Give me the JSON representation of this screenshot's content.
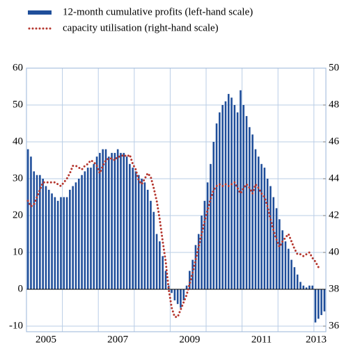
{
  "chart_data": {
    "type": "bar_line",
    "categories": [
      null,
      null,
      null,
      null,
      null,
      null,
      "2005",
      null,
      null,
      null,
      null,
      null,
      null,
      null,
      null,
      null,
      null,
      null,
      null,
      null,
      null,
      null,
      null,
      null,
      null,
      null,
      null,
      null,
      null,
      null,
      "2007",
      null,
      null,
      null,
      null,
      null,
      null,
      null,
      null,
      null,
      null,
      null,
      null,
      null,
      null,
      null,
      null,
      null,
      null,
      null,
      null,
      null,
      null,
      null,
      "2009",
      null,
      null,
      null,
      null,
      null,
      null,
      null,
      null,
      null,
      null,
      null,
      null,
      null,
      null,
      null,
      null,
      null,
      null,
      null,
      null,
      null,
      null,
      null,
      "2011",
      null,
      null,
      null,
      null,
      null,
      null,
      null,
      null,
      null,
      null,
      null,
      null,
      null,
      null,
      null,
      null,
      null,
      null,
      null,
      null,
      "2013"
    ],
    "series": [
      {
        "name": "12-month cumulative profits (left-hand scale)",
        "color": "#1f4e9a",
        "kind": "bar",
        "values": [
          38,
          36,
          32,
          31,
          31,
          30,
          28,
          27,
          26,
          25,
          24,
          25,
          25,
          25,
          27,
          28,
          29,
          30,
          31,
          32,
          33,
          33,
          34,
          36,
          37,
          38,
          38,
          36,
          37,
          37,
          38,
          37,
          37,
          36,
          34,
          33,
          32,
          31,
          30,
          29,
          27,
          24,
          21,
          15,
          13,
          9,
          5,
          1,
          -1,
          -3,
          -4,
          -5,
          -3,
          1,
          5,
          8,
          12,
          15,
          20,
          24,
          29,
          34,
          40,
          45,
          48,
          50,
          51,
          53,
          52,
          50,
          48,
          54,
          50,
          47,
          44,
          42,
          38,
          36,
          34,
          33,
          30,
          28,
          25,
          22,
          19,
          16,
          13,
          11,
          8,
          6,
          4,
          2,
          1,
          0.5,
          1,
          1,
          -9,
          -8,
          -7,
          -6
        ]
      },
      {
        "name": "capacity utilisation (right-hand scale)",
        "color": "#b5362e",
        "kind": "line",
        "axis": "y2",
        "values": [
          42.8,
          42.5,
          42.6,
          43.0,
          43.4,
          43.8,
          43.8,
          43.8,
          43.8,
          43.8,
          43.7,
          43.6,
          43.8,
          44.0,
          44.3,
          44.7,
          44.7,
          44.6,
          44.5,
          44.7,
          44.8,
          45.0,
          44.9,
          44.7,
          44.3,
          44.7,
          45.0,
          45.1,
          45.1,
          45.0,
          45.2,
          45.2,
          45.3,
          45.2,
          45.3,
          44.8,
          44.5,
          43.9,
          43.7,
          44.0,
          44.3,
          44.1,
          43.5,
          42.8,
          41.8,
          40.6,
          39.5,
          38.0,
          37.0,
          36.5,
          36.5,
          36.9,
          37.3,
          37.7,
          38.3,
          38.9,
          39.6,
          40.3,
          41.0,
          41.7,
          42.3,
          42.9,
          43.4,
          43.6,
          43.7,
          43.6,
          43.7,
          43.6,
          43.7,
          43.8,
          43.5,
          43.2,
          43.5,
          43.7,
          43.5,
          43.2,
          43.7,
          43.5,
          43.2,
          43.0,
          42.5,
          41.8,
          41.2,
          40.7,
          40.3,
          40.6,
          40.8,
          41.0,
          40.6,
          40.2,
          39.9,
          39.9,
          39.8,
          39.9,
          40.0,
          39.7,
          39.5,
          39.2,
          null,
          null
        ]
      }
    ],
    "ylim": [
      -10,
      60
    ],
    "yticks": [
      -10,
      0,
      10,
      20,
      30,
      40,
      50,
      60
    ],
    "y2lim": [
      36,
      50
    ],
    "y2ticks": [
      36,
      38,
      40,
      42,
      44,
      46,
      48,
      50
    ],
    "grid": true,
    "legend": "top"
  }
}
